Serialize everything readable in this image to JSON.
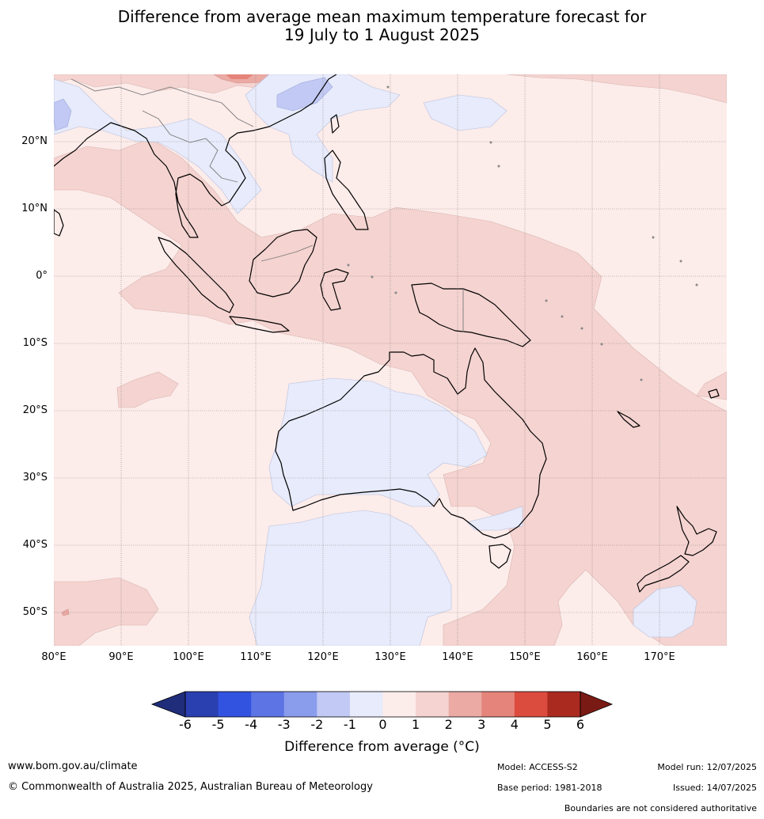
{
  "title": {
    "line1": "Difference from average mean maximum temperature forecast for",
    "line2": "19 July to 1 August 2025"
  },
  "axes": {
    "lat_labels": [
      "20°N",
      "10°N",
      "0°",
      "10°S",
      "20°S",
      "30°S",
      "40°S",
      "50°S"
    ],
    "lon_labels": [
      "80°E",
      "90°E",
      "100°E",
      "110°E",
      "120°E",
      "130°E",
      "140°E",
      "150°E",
      "160°E",
      "170°E"
    ]
  },
  "colorbar": {
    "label": "Difference from average (°C)",
    "ticks": [
      "-6",
      "-5",
      "-4",
      "-3",
      "-2",
      "-1",
      "0",
      "1",
      "2",
      "3",
      "4",
      "5",
      "6"
    ],
    "colors": {
      "below_min": "#1f2d7a",
      "bins": [
        "#2a3fb0",
        "#3252e0",
        "#5d74e4",
        "#8a9cec",
        "#c1c9f4",
        "#e7ebfb",
        "#fcecea",
        "#f4d3d0",
        "#ebaaa4",
        "#e5847a",
        "#dc4c3e",
        "#aa2a1f"
      ],
      "above_max": "#7a1a14"
    }
  },
  "map": {
    "grid_color": "#8a7e7e",
    "coast_color": "#000000",
    "border_color": "#7a7a7a",
    "background": "#fcecea"
  },
  "footer": {
    "website": "www.bom.gov.au/climate",
    "copyright": "© Commonwealth of Australia 2025, Australian Bureau of Meteorology",
    "model": "Model: ACCESS-S2",
    "base_period": "Base period: 1981-2018",
    "model_run": "Model run: 12/07/2025",
    "issued": "Issued: 14/07/2025",
    "disclaimer": "Boundaries are not considered authoritative"
  }
}
